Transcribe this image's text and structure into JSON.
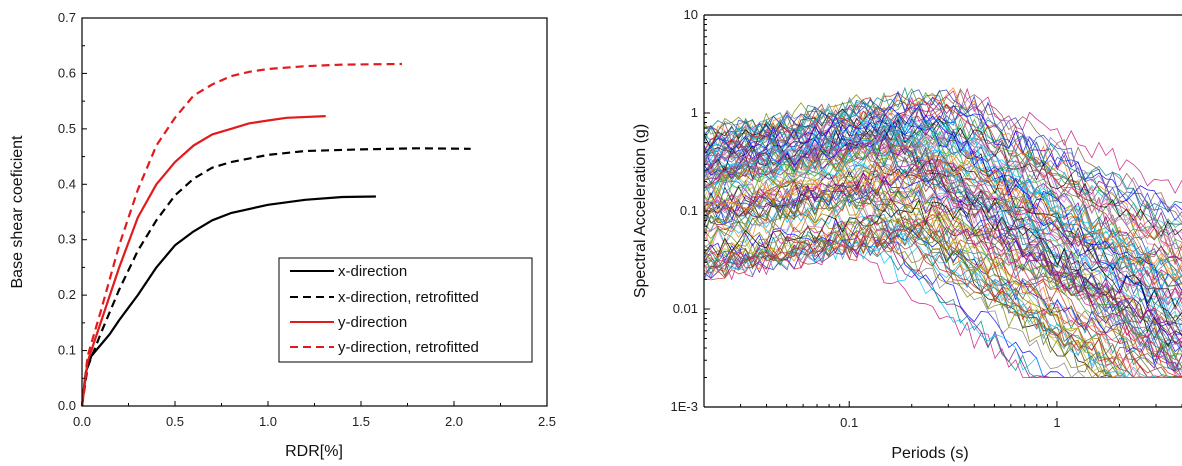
{
  "chart_data": [
    {
      "type": "line",
      "xlabel": "RDR[%]",
      "ylabel": "Base shear coeficient",
      "xlim": [
        0,
        2.5
      ],
      "ylim": [
        0,
        0.7
      ],
      "xticks": [
        "0.0",
        "0.5",
        "1.0",
        "1.5",
        "2.0",
        "2.5"
      ],
      "yticks": [
        "0.0",
        "0.1",
        "0.2",
        "0.3",
        "0.4",
        "0.5",
        "0.6",
        "0.7"
      ],
      "grid": false,
      "legend_position": "bottom-right",
      "series": [
        {
          "name": "x-direction",
          "color": "#000000",
          "dash": "solid",
          "x": [
            0,
            0.02,
            0.05,
            0.1,
            0.15,
            0.2,
            0.3,
            0.4,
            0.5,
            0.6,
            0.7,
            0.8,
            1.0,
            1.2,
            1.4,
            1.58
          ],
          "y": [
            0,
            0.06,
            0.09,
            0.11,
            0.13,
            0.155,
            0.2,
            0.25,
            0.29,
            0.315,
            0.335,
            0.348,
            0.363,
            0.372,
            0.377,
            0.378
          ]
        },
        {
          "name": "x-direction, retrofitted",
          "color": "#000000",
          "dash": "dashed",
          "x": [
            0,
            0.03,
            0.1,
            0.2,
            0.3,
            0.4,
            0.5,
            0.6,
            0.7,
            0.8,
            1.0,
            1.2,
            1.5,
            1.8,
            2.09
          ],
          "y": [
            0,
            0.07,
            0.13,
            0.21,
            0.28,
            0.335,
            0.38,
            0.41,
            0.43,
            0.44,
            0.453,
            0.46,
            0.463,
            0.465,
            0.464
          ]
        },
        {
          "name": "y-direction",
          "color": "#e31a1c",
          "dash": "solid",
          "x": [
            0,
            0.03,
            0.1,
            0.2,
            0.3,
            0.4,
            0.5,
            0.6,
            0.7,
            0.8,
            0.9,
            1.0,
            1.1,
            1.31
          ],
          "y": [
            0,
            0.08,
            0.15,
            0.25,
            0.34,
            0.4,
            0.44,
            0.47,
            0.49,
            0.5,
            0.51,
            0.515,
            0.52,
            0.523
          ]
        },
        {
          "name": "y-direction, retrofitted",
          "color": "#e31a1c",
          "dash": "dashed",
          "x": [
            0,
            0.03,
            0.1,
            0.2,
            0.3,
            0.4,
            0.5,
            0.6,
            0.7,
            0.8,
            0.9,
            1.0,
            1.2,
            1.4,
            1.72
          ],
          "y": [
            0,
            0.09,
            0.17,
            0.29,
            0.39,
            0.47,
            0.52,
            0.56,
            0.58,
            0.595,
            0.603,
            0.608,
            0.613,
            0.616,
            0.617
          ]
        }
      ]
    },
    {
      "type": "line",
      "xlabel": "Periods (s)",
      "ylabel": "Spectral Acceleration (g)",
      "xscale": "log",
      "yscale": "log",
      "xlim": [
        0.02,
        4
      ],
      "ylim": [
        0.001,
        10
      ],
      "xticks": [
        "0.1",
        "1"
      ],
      "yticks": [
        "1E-3",
        "0.01",
        "0.1",
        "1",
        "10"
      ],
      "grid": false,
      "legend": false,
      "num_series": 120,
      "series_note": "ground-motion response spectra, multi-coloured thin lines; individual series unlabeled",
      "envelope": {
        "median_y_at_short_period": 0.12,
        "peak_period": 0.2,
        "median_y_at_long_period": 0.02,
        "min_y": 0.002,
        "max_y": 3.2
      }
    }
  ]
}
